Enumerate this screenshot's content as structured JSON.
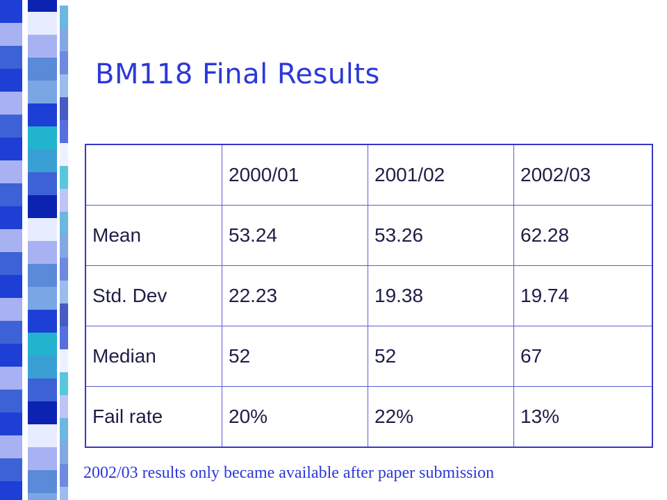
{
  "slide": {
    "title": "BM118 Final Results",
    "footnote": "2002/03 results only became available after paper submission"
  },
  "table": {
    "header": [
      "",
      "2000/01",
      "2001/02",
      "2002/03"
    ],
    "rows": [
      {
        "label": "Mean",
        "values": [
          "53.24",
          "53.26",
          "62.28"
        ]
      },
      {
        "label": "Std. Dev",
        "values": [
          "22.23",
          "19.38",
          "19.74"
        ]
      },
      {
        "label": "Median",
        "values": [
          "52",
          "52",
          "67"
        ]
      },
      {
        "label": "Fail rate",
        "values": [
          "20%",
          "22%",
          "13%"
        ]
      }
    ]
  },
  "colors": {
    "accent": "#2b38d8",
    "strip": [
      "#1d3fd6",
      "#3a9fd4",
      "#0b23b0",
      "#a8b2f2",
      "#7aa6e6",
      "#22b3cf",
      "#3c62d6",
      "#e8ecff",
      "#5a8ad8"
    ]
  }
}
